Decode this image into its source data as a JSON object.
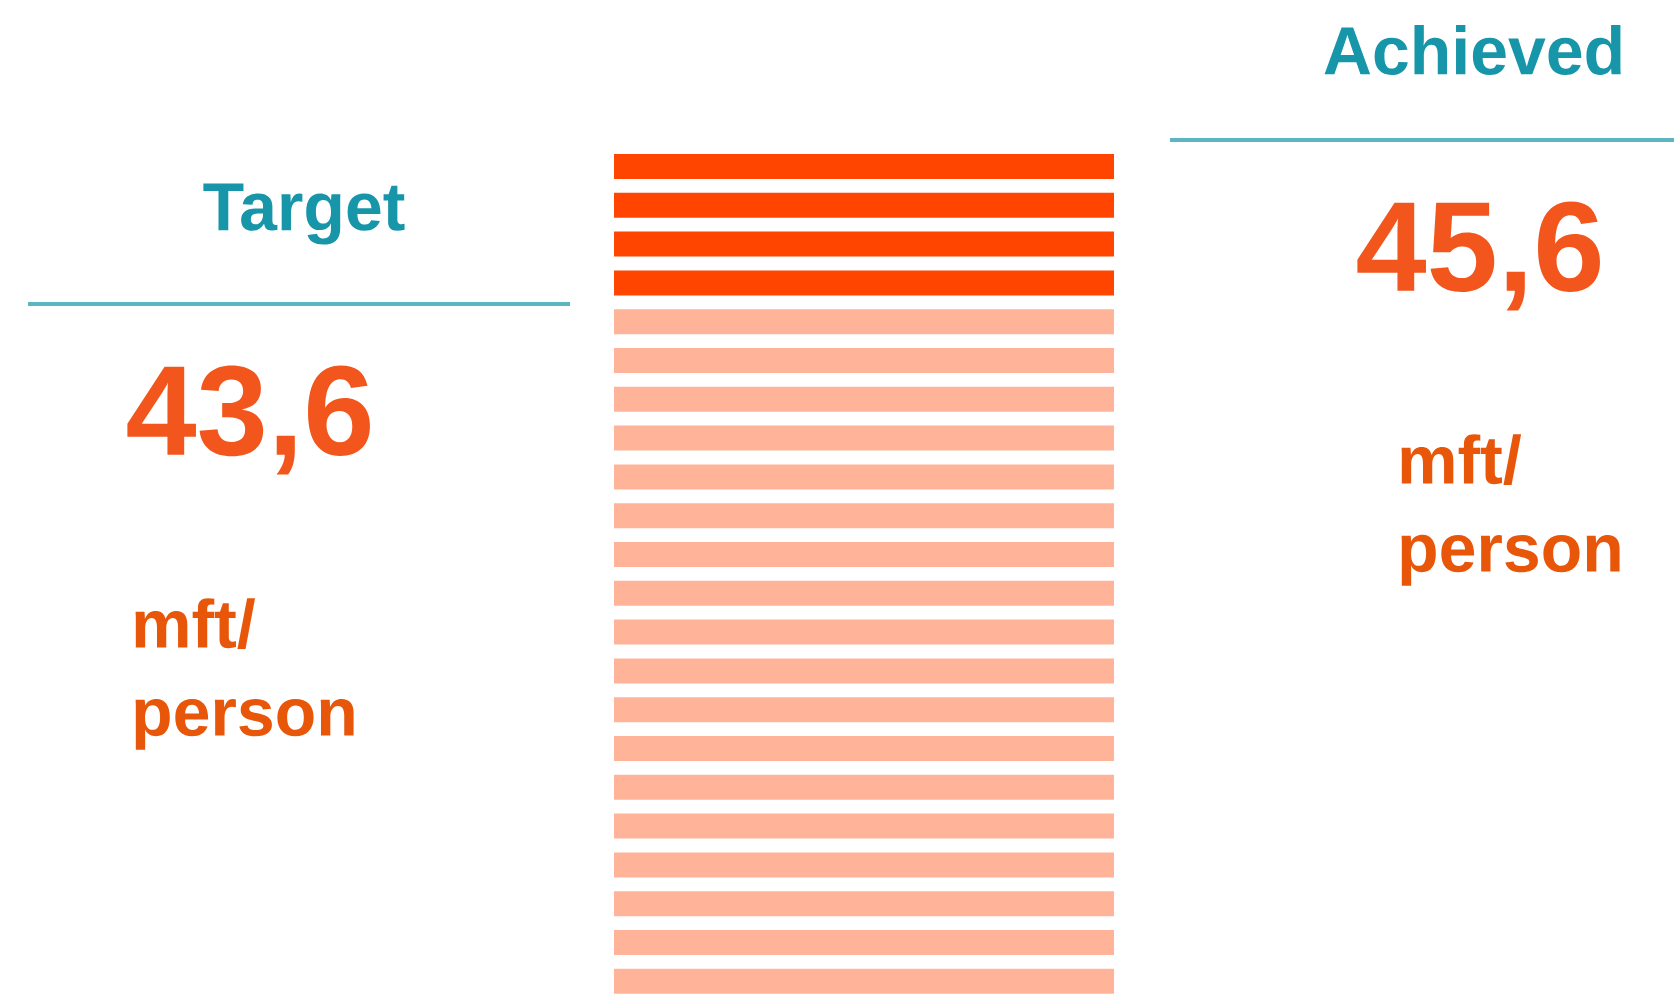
{
  "chart_data": {
    "type": "other",
    "categories": [
      "Target",
      "Achieved"
    ],
    "values": [
      43.6,
      45.6
    ],
    "value_labels": [
      "43,6",
      "45,6"
    ],
    "annotations": [
      "mft/ person",
      "mft/ person"
    ],
    "colors": [
      "#f2561d",
      "#f2561d"
    ]
  }
}
